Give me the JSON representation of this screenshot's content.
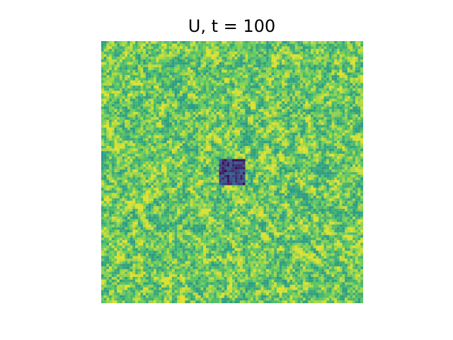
{
  "chart_data": {
    "type": "heatmap",
    "title": "U, t = 100",
    "xlabel": "",
    "ylabel": "",
    "grid": false,
    "colorbar": false,
    "axes_visible": false,
    "colormap": "viridis",
    "grid_size": [
      100,
      100
    ],
    "value_range": [
      0,
      1
    ],
    "background_value_range": [
      0.55,
      0.95
    ],
    "patch": {
      "row_range": [
        45,
        55
      ],
      "col_range": [
        45,
        55
      ],
      "value_range": [
        0.02,
        0.35
      ]
    },
    "colors": {
      "low": "#440154",
      "mid_low": "#3b528b",
      "mid": "#21918c",
      "mid_high": "#5ec962",
      "high": "#fde725"
    }
  }
}
